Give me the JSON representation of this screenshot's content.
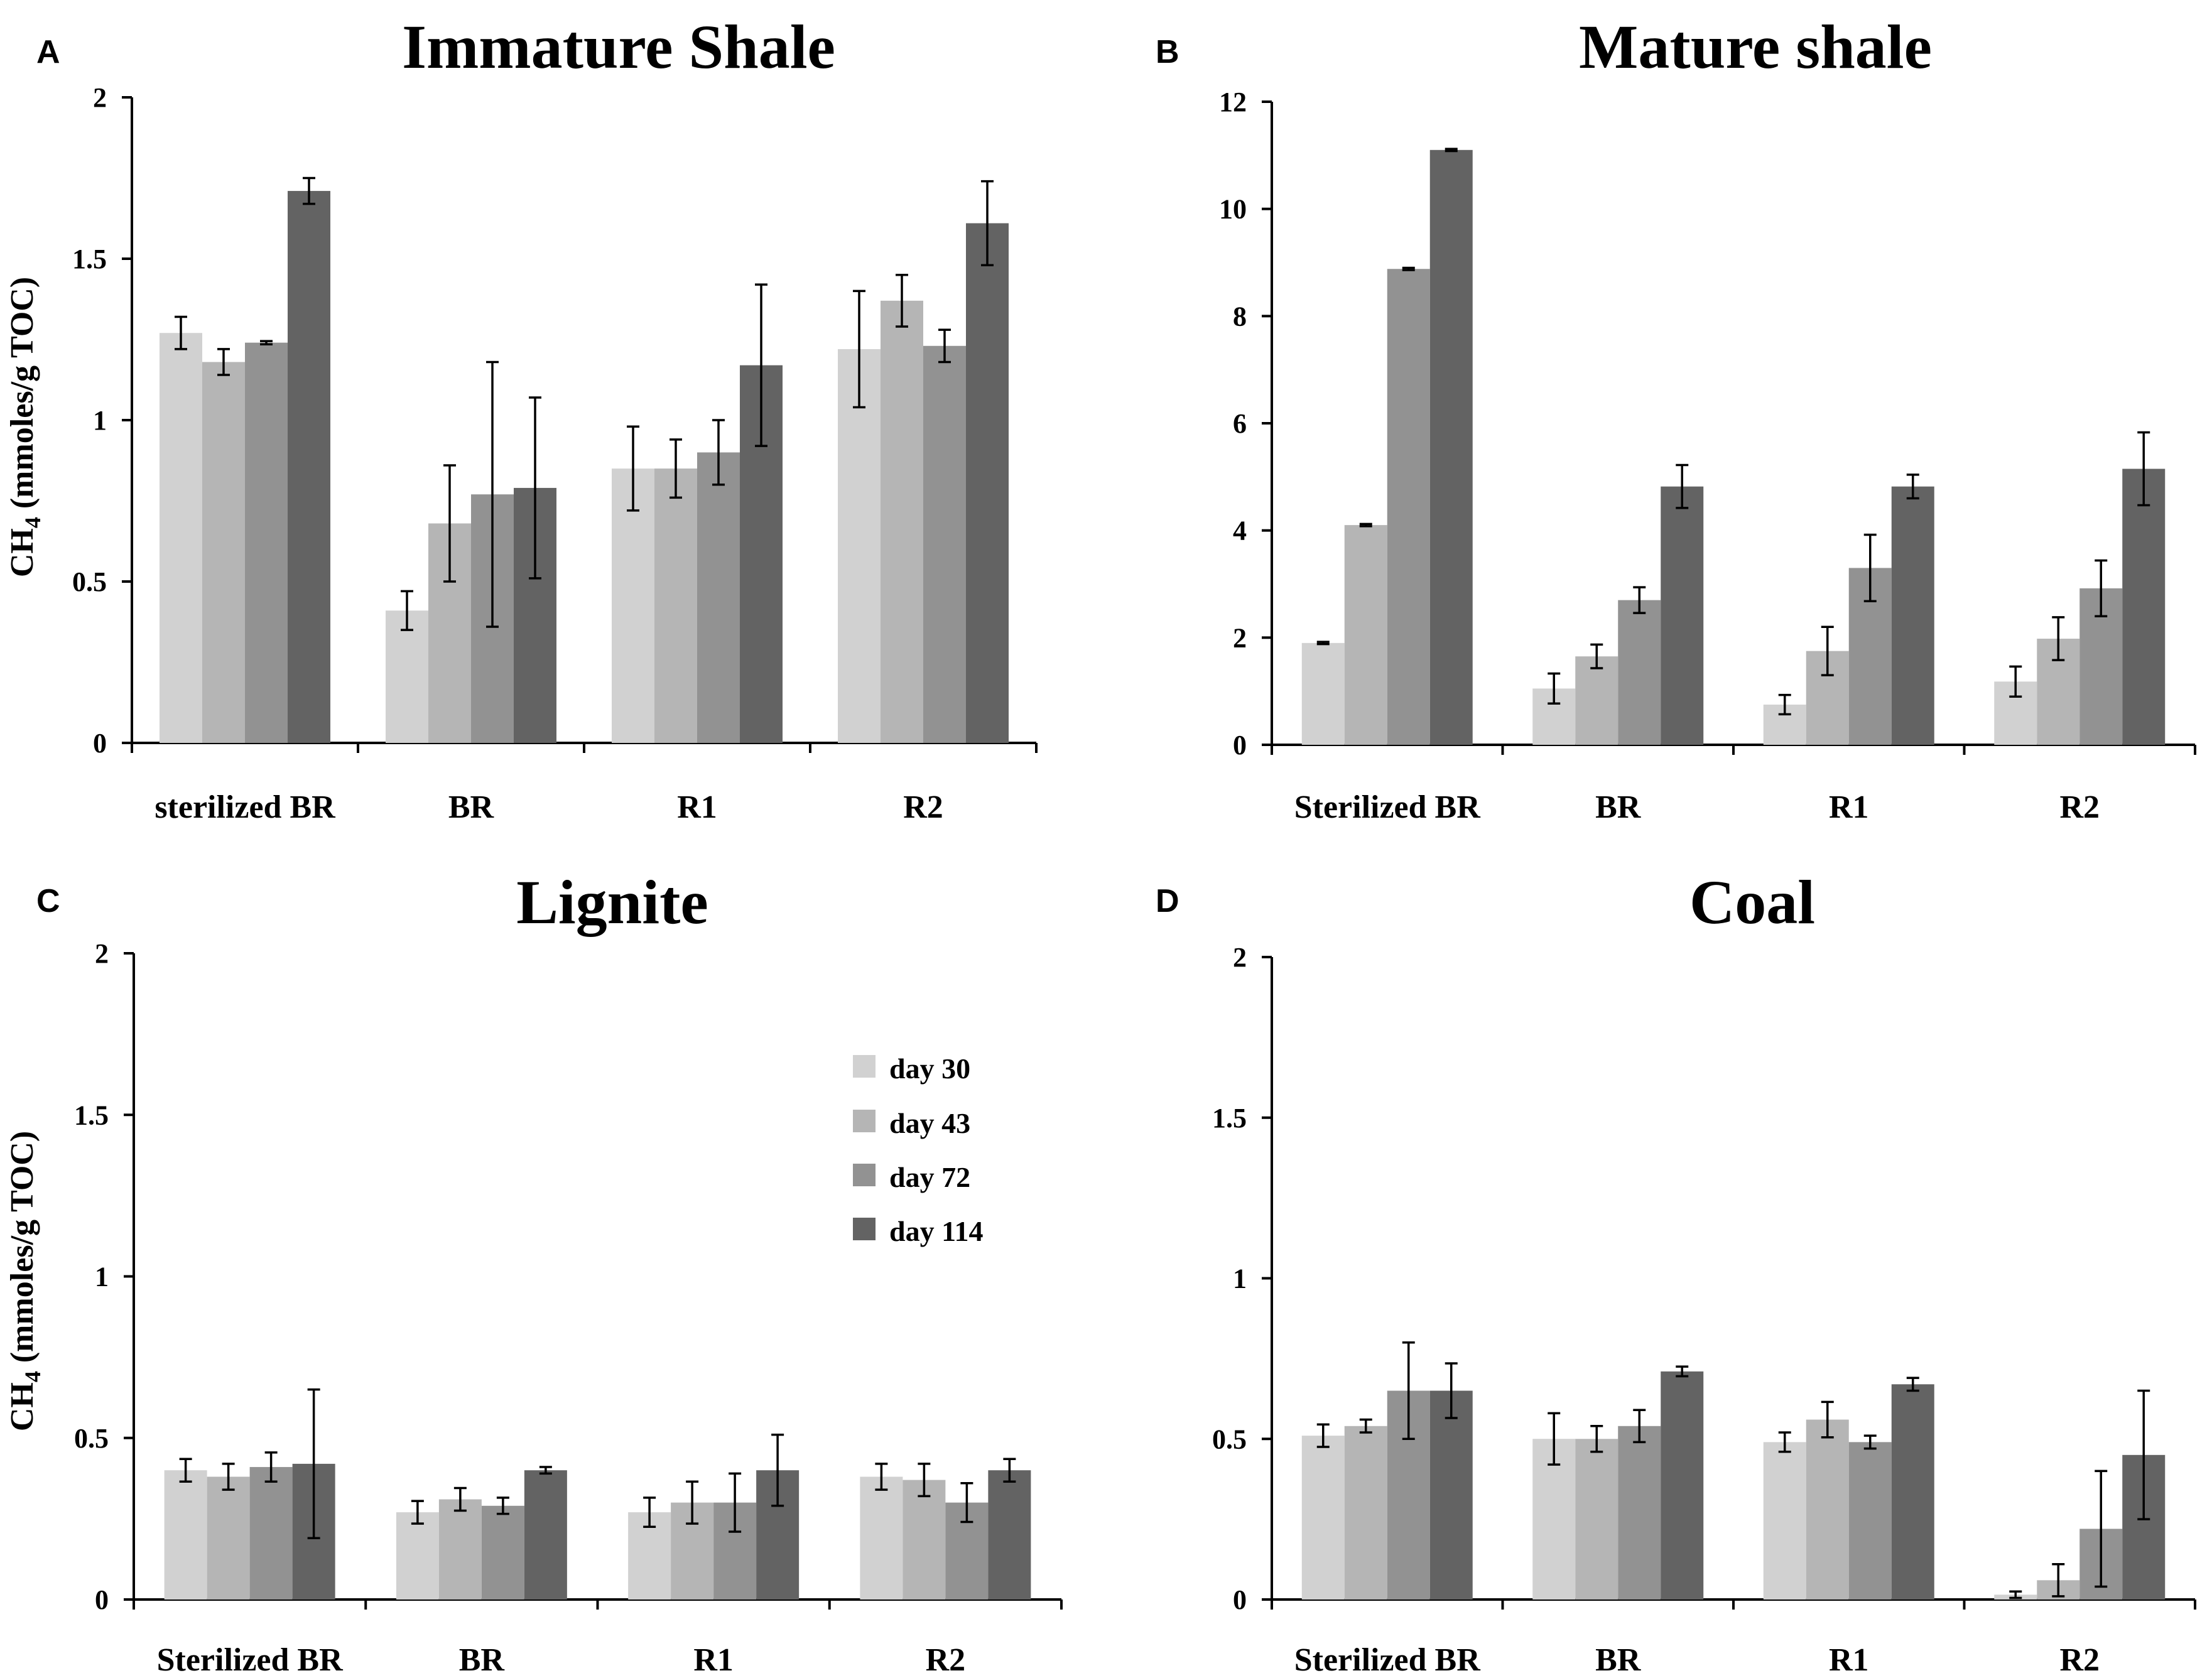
{
  "y_axis_label": "CH4 (mmoles/g TOC)",
  "legend": {
    "entries": [
      "day 30",
      "day 43",
      "day 72",
      "day 114"
    ]
  },
  "series_colors": [
    "#d1d1d1",
    "#b5b5b5",
    "#929292",
    "#636363"
  ],
  "chart_data": [
    {
      "panel": "A",
      "type": "bar",
      "title": "Immature Shale",
      "categories": [
        "sterilized BR",
        "BR",
        "R1",
        "R2"
      ],
      "ylim": [
        0,
        2
      ],
      "yticks": [
        0,
        0.5,
        1,
        1.5,
        2
      ],
      "yticks_labels": [
        "0",
        "0.5",
        "1",
        "1.5",
        "2"
      ],
      "series": [
        {
          "name": "day 30",
          "values": [
            1.27,
            0.41,
            0.85,
            1.22
          ],
          "errors": [
            0.05,
            0.06,
            0.13,
            0.18
          ]
        },
        {
          "name": "day 43",
          "values": [
            1.18,
            0.68,
            0.85,
            1.37
          ],
          "errors": [
            0.04,
            0.18,
            0.09,
            0.08
          ]
        },
        {
          "name": "day 72",
          "values": [
            1.24,
            0.77,
            0.9,
            1.23
          ],
          "errors": [
            0.005,
            0.41,
            0.1,
            0.05
          ]
        },
        {
          "name": "day 114",
          "values": [
            1.71,
            0.79,
            1.17,
            1.61
          ],
          "errors": [
            0.04,
            0.28,
            0.25,
            0.13
          ]
        }
      ]
    },
    {
      "panel": "B",
      "type": "bar",
      "title": "Mature shale",
      "categories": [
        "Sterilized BR",
        "BR",
        "R1",
        "R2"
      ],
      "ylim": [
        0,
        12
      ],
      "yticks": [
        0,
        2,
        4,
        6,
        8,
        10,
        12
      ],
      "yticks_labels": [
        "0",
        "2",
        "4",
        "6",
        "8",
        "10",
        "12"
      ],
      "series": [
        {
          "name": "day 30",
          "values": [
            1.9,
            1.05,
            0.75,
            1.18
          ],
          "errors": [
            0.02,
            0.28,
            0.18,
            0.28
          ]
        },
        {
          "name": "day 43",
          "values": [
            4.1,
            1.65,
            1.75,
            1.98
          ],
          "errors": [
            0.02,
            0.22,
            0.45,
            0.4
          ]
        },
        {
          "name": "day 72",
          "values": [
            8.88,
            2.7,
            3.3,
            2.92
          ],
          "errors": [
            0.02,
            0.24,
            0.62,
            0.52
          ]
        },
        {
          "name": "day 114",
          "values": [
            11.1,
            4.82,
            4.82,
            5.15
          ],
          "errors": [
            0.02,
            0.4,
            0.22,
            0.68
          ]
        }
      ]
    },
    {
      "panel": "C",
      "type": "bar",
      "title": "Lignite",
      "categories": [
        "Sterilized BR",
        "BR",
        "R1",
        "R2"
      ],
      "ylim": [
        0,
        2
      ],
      "yticks": [
        0,
        0.5,
        1,
        1.5,
        2
      ],
      "yticks_labels": [
        "0",
        "0.5",
        "1",
        "1.5",
        "2"
      ],
      "series": [
        {
          "name": "day 30",
          "values": [
            0.4,
            0.27,
            0.27,
            0.38
          ],
          "errors": [
            0.035,
            0.035,
            0.045,
            0.04
          ]
        },
        {
          "name": "day 43",
          "values": [
            0.38,
            0.31,
            0.3,
            0.37
          ],
          "errors": [
            0.04,
            0.035,
            0.065,
            0.05
          ]
        },
        {
          "name": "day 72",
          "values": [
            0.41,
            0.29,
            0.3,
            0.3
          ],
          "errors": [
            0.045,
            0.025,
            0.09,
            0.06
          ]
        },
        {
          "name": "day 114",
          "values": [
            0.42,
            0.4,
            0.4,
            0.4
          ],
          "errors": [
            0.23,
            0.01,
            0.11,
            0.035
          ]
        }
      ]
    },
    {
      "panel": "D",
      "type": "bar",
      "title": "Coal",
      "categories": [
        "Sterilized BR",
        "BR",
        "R1",
        "R2"
      ],
      "ylim": [
        0,
        2
      ],
      "yticks": [
        0,
        0.5,
        1,
        1.5,
        2
      ],
      "yticks_labels": [
        "0",
        "0.5",
        "1",
        "1.5",
        "2"
      ],
      "series": [
        {
          "name": "day 30",
          "values": [
            0.51,
            0.5,
            0.49,
            0.015
          ],
          "errors": [
            0.035,
            0.08,
            0.03,
            0.01
          ]
        },
        {
          "name": "day 43",
          "values": [
            0.54,
            0.5,
            0.56,
            0.06
          ],
          "errors": [
            0.02,
            0.04,
            0.055,
            0.05
          ]
        },
        {
          "name": "day 72",
          "values": [
            0.65,
            0.54,
            0.49,
            0.22
          ],
          "errors": [
            0.15,
            0.05,
            0.02,
            0.18
          ]
        },
        {
          "name": "day 114",
          "values": [
            0.65,
            0.71,
            0.67,
            0.45
          ],
          "errors": [
            0.085,
            0.015,
            0.02,
            0.2
          ]
        }
      ]
    }
  ]
}
